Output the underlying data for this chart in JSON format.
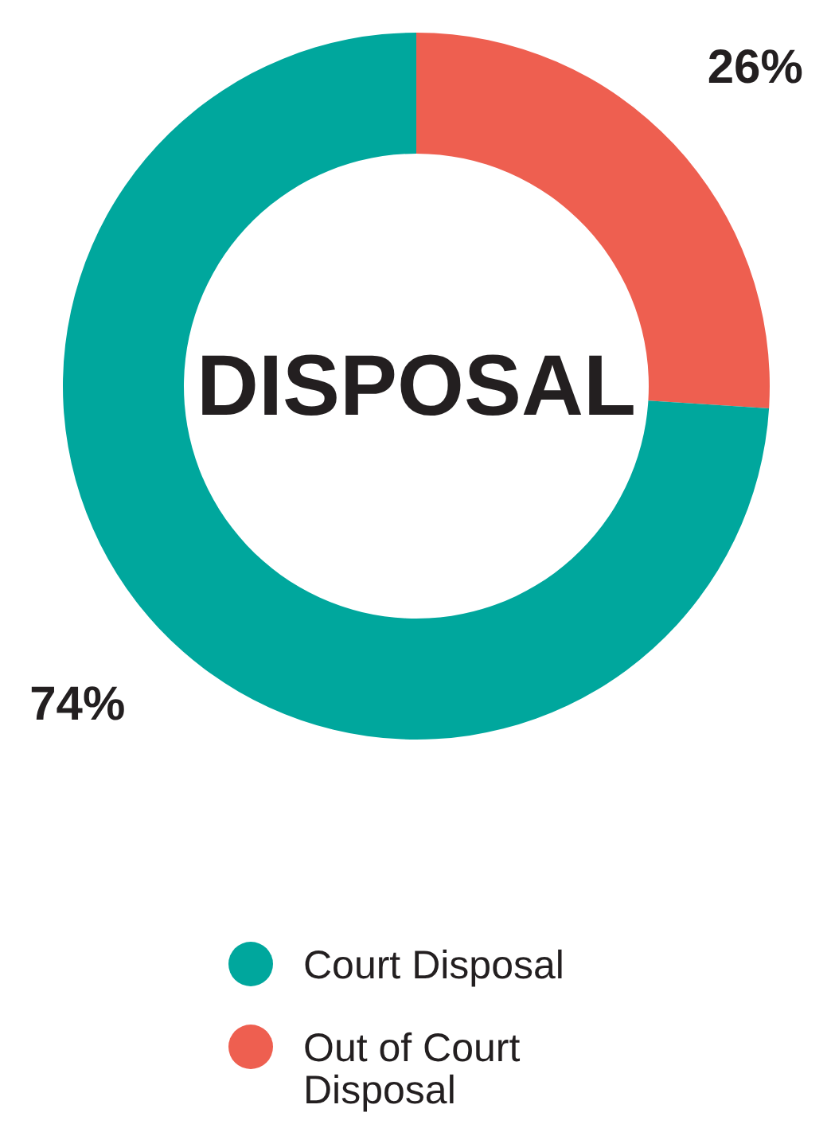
{
  "chart_data": {
    "type": "donut",
    "title": "DISPOSAL",
    "categories": [
      "Court Disposal",
      "Out of Court Disposal"
    ],
    "values": [
      74,
      26
    ],
    "colors": [
      "#00a79d",
      "#ee5f50"
    ],
    "value_labels": [
      "74%",
      "26%"
    ],
    "legend": "bottom"
  }
}
